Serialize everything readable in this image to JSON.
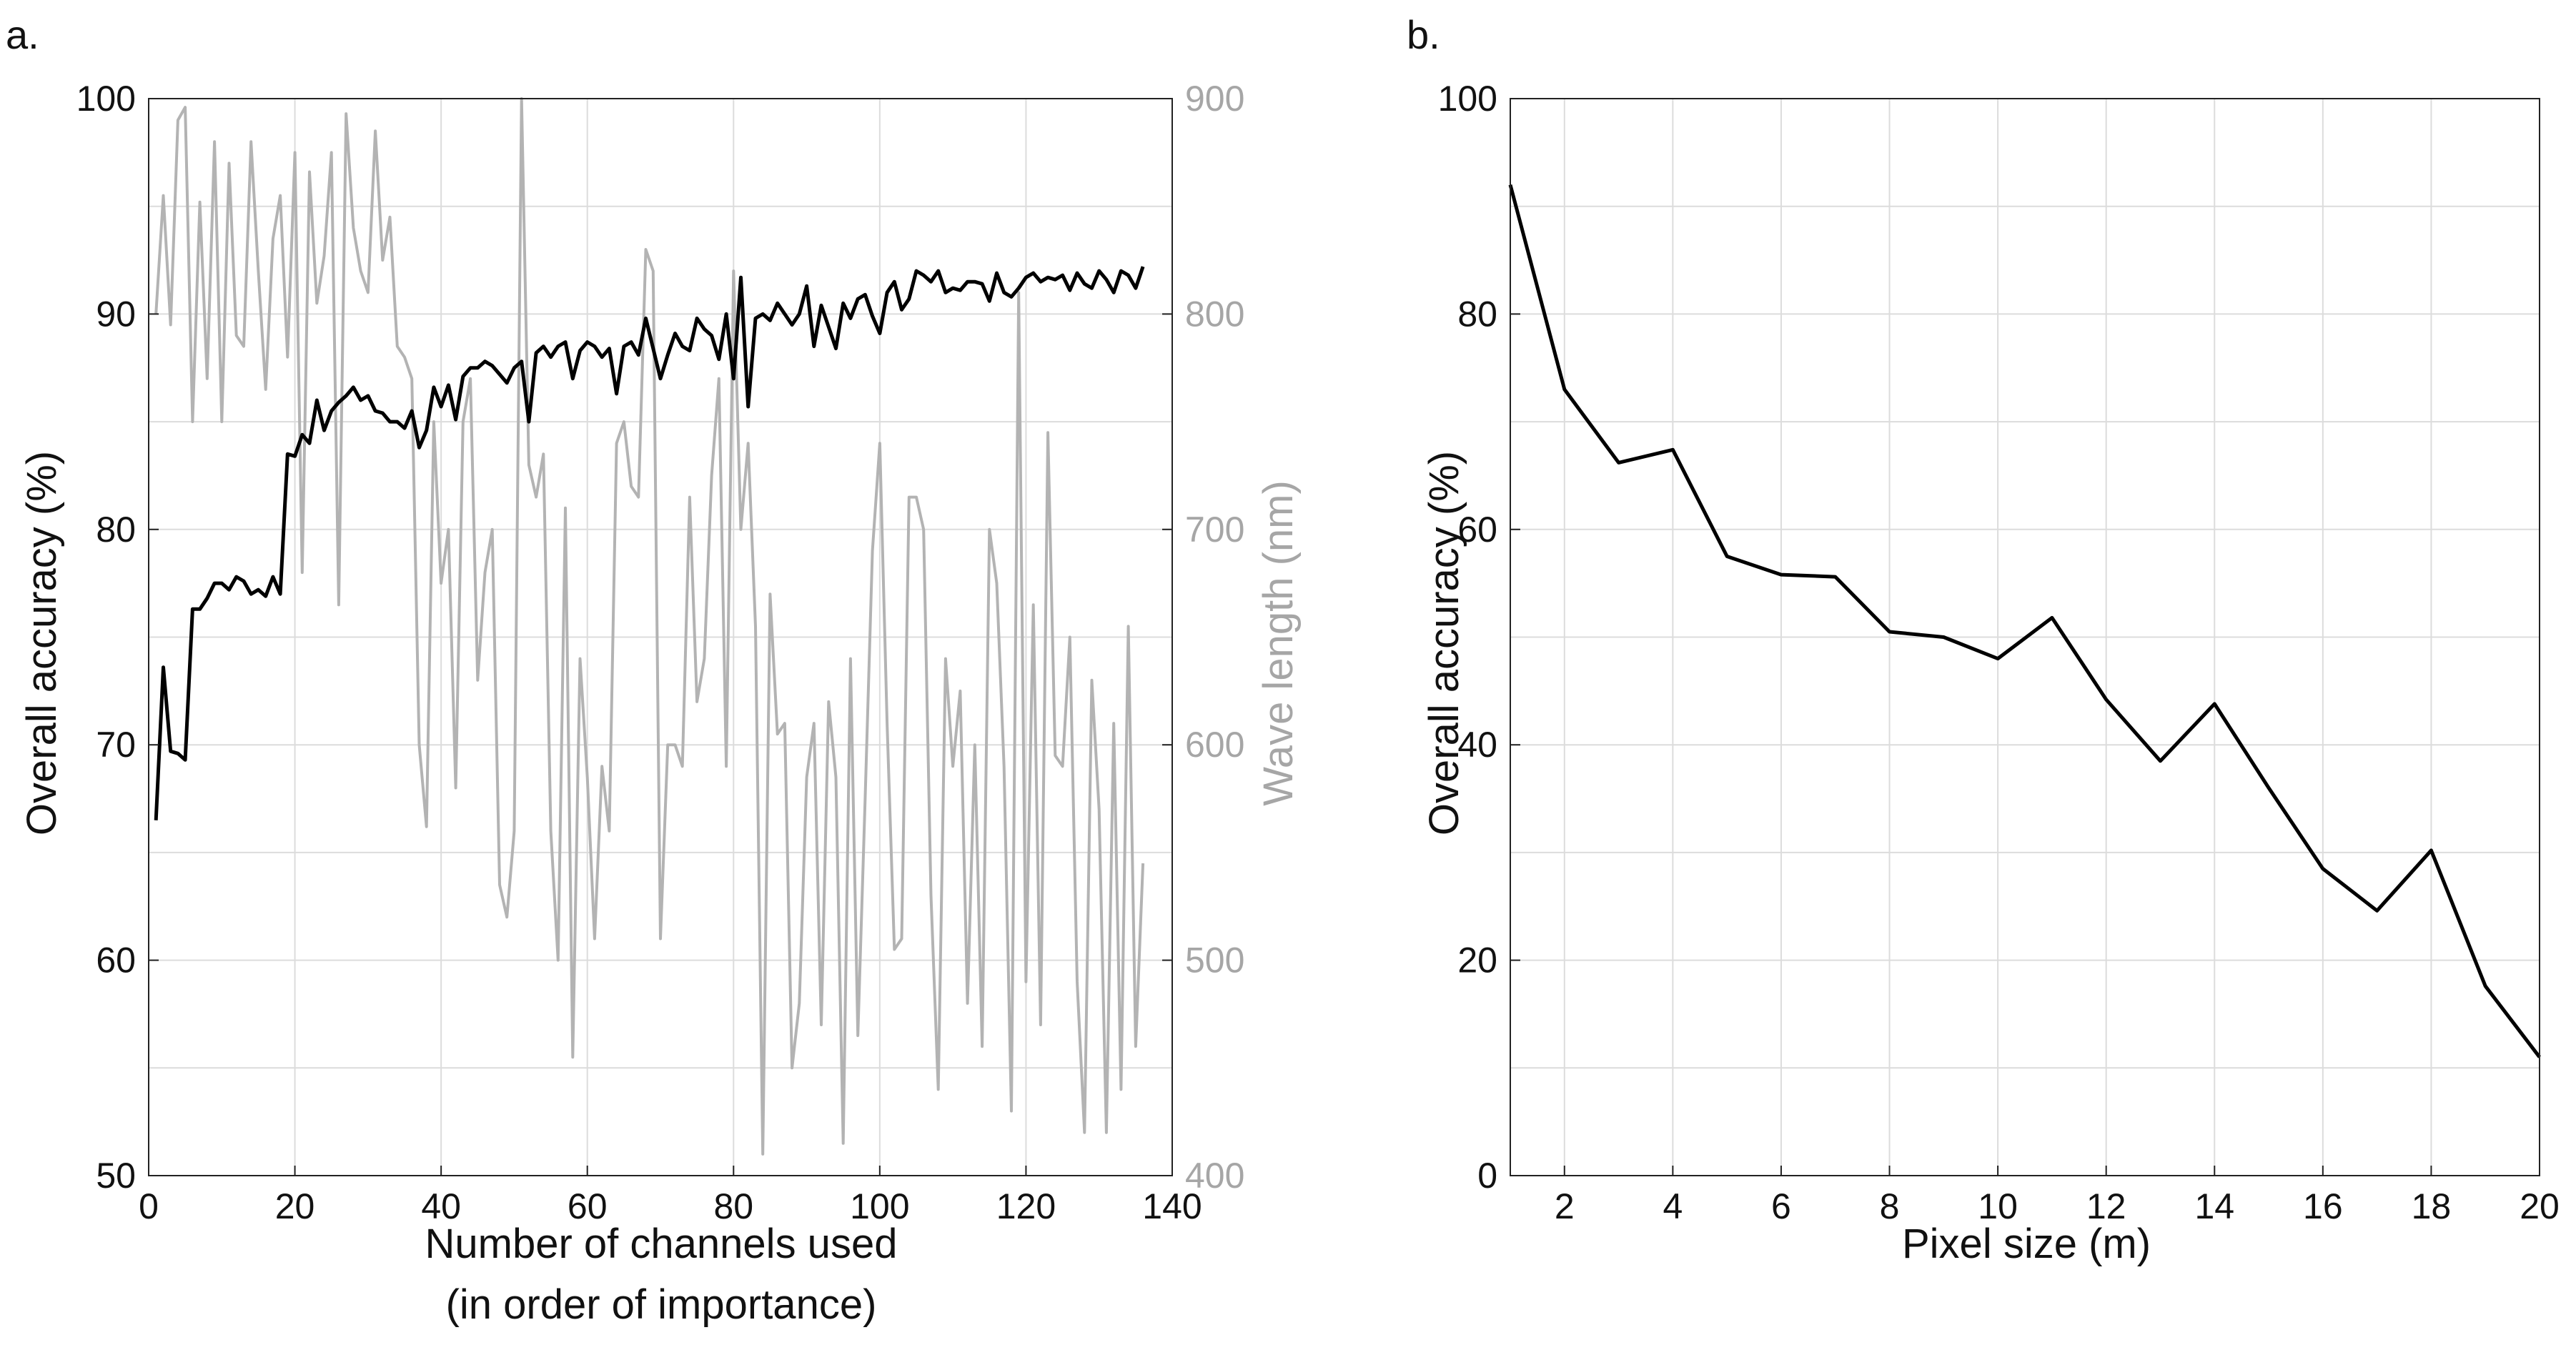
{
  "chart_data": [
    {
      "panel_label": "a.",
      "type": "line",
      "xlabel": "Number of channels used",
      "xlabel_line2": "(in order of importance)",
      "ylabel": "Overall accuracy (%)",
      "y2label": "Wave length (nm)",
      "xlim": [
        0,
        140
      ],
      "ylim": [
        50,
        100
      ],
      "y2lim": [
        400,
        900
      ],
      "x_ticks": [
        "0",
        "20",
        "40",
        "60",
        "80",
        "100",
        "120",
        "140"
      ],
      "y_ticks": [
        "50",
        "60",
        "70",
        "80",
        "90",
        "100"
      ],
      "y2_ticks": [
        "400",
        "500",
        "600",
        "700",
        "800",
        "900"
      ],
      "grid": true,
      "colors": {
        "accuracy": "#000000",
        "wavelength": "#b3b3b3"
      },
      "series": [
        {
          "axis": "left",
          "x": [
            1,
            2,
            3,
            4,
            5,
            6,
            7,
            8,
            9,
            10,
            11,
            12,
            13,
            14,
            15,
            16,
            17,
            18,
            19,
            20,
            21,
            22,
            23,
            24,
            25,
            26,
            27,
            28,
            29,
            30,
            31,
            32,
            33,
            34,
            35,
            36,
            37,
            38,
            39,
            40,
            41,
            42,
            43,
            44,
            45,
            46,
            47,
            48,
            49,
            50,
            51,
            52,
            53,
            54,
            55,
            56,
            57,
            58,
            59,
            60,
            61,
            62,
            63,
            64,
            65,
            66,
            67,
            68,
            69,
            70,
            71,
            72,
            73,
            74,
            75,
            76,
            77,
            78,
            79,
            80,
            81,
            82,
            83,
            84,
            85,
            86,
            87,
            88,
            89,
            90,
            91,
            92,
            93,
            94,
            95,
            96,
            97,
            98,
            99,
            100,
            101,
            102,
            103,
            104,
            105,
            106,
            107,
            108,
            109,
            110,
            111,
            112,
            113,
            114,
            115,
            116,
            117,
            118,
            119,
            120,
            121,
            122,
            123,
            124,
            125,
            126,
            127,
            128,
            129,
            130,
            131,
            132,
            133,
            134,
            135,
            136
          ],
          "values": [
            66.5,
            73.6,
            69.7,
            69.6,
            69.3,
            76.3,
            76.3,
            76.8,
            77.5,
            77.5,
            77.2,
            77.8,
            77.6,
            77.0,
            77.2,
            76.9,
            77.8,
            77.0,
            83.5,
            83.4,
            84.4,
            84.0,
            86.0,
            84.6,
            85.5,
            85.9,
            86.2,
            86.6,
            86.0,
            86.2,
            85.5,
            85.4,
            85.0,
            85.0,
            84.7,
            85.5,
            83.8,
            84.6,
            86.6,
            85.7,
            86.7,
            85.1,
            87.1,
            87.5,
            87.5,
            87.8,
            87.6,
            87.2,
            86.8,
            87.5,
            87.8,
            85.0,
            88.2,
            88.5,
            88.0,
            88.5,
            88.7,
            87.0,
            88.3,
            88.7,
            88.5,
            88.0,
            88.4,
            86.3,
            88.5,
            88.7,
            88.1,
            89.8,
            88.4,
            87.0,
            88.1,
            89.1,
            88.5,
            88.3,
            89.8,
            89.3,
            89.0,
            87.9,
            90.0,
            87.0,
            91.7,
            85.7,
            89.8,
            90.0,
            89.7,
            90.5,
            90.0,
            89.5,
            90.0,
            91.3,
            88.5,
            90.4,
            89.4,
            88.4,
            90.5,
            89.8,
            90.7,
            90.9,
            89.9,
            89.1,
            91.0,
            91.5,
            90.2,
            90.7,
            92.0,
            91.8,
            91.5,
            92.0,
            91.0,
            91.2,
            91.1,
            91.5,
            91.5,
            91.4,
            90.6,
            91.9,
            91.0,
            90.8,
            91.2,
            91.7,
            91.9,
            91.5,
            91.7,
            91.6,
            91.8,
            91.1,
            91.9,
            91.4,
            91.2,
            92.0,
            91.6,
            91.0,
            92.0,
            91.8,
            91.2,
            92.2
          ]
        },
        {
          "axis": "right",
          "x": [
            1,
            2,
            3,
            4,
            5,
            6,
            7,
            8,
            9,
            10,
            11,
            12,
            13,
            14,
            15,
            16,
            17,
            18,
            19,
            20,
            21,
            22,
            23,
            24,
            25,
            26,
            27,
            28,
            29,
            30,
            31,
            32,
            33,
            34,
            35,
            36,
            37,
            38,
            39,
            40,
            41,
            42,
            43,
            44,
            45,
            46,
            47,
            48,
            49,
            50,
            51,
            52,
            53,
            54,
            55,
            56,
            57,
            58,
            59,
            60,
            61,
            62,
            63,
            64,
            65,
            66,
            67,
            68,
            69,
            70,
            71,
            72,
            73,
            74,
            75,
            76,
            77,
            78,
            79,
            80,
            81,
            82,
            83,
            84,
            85,
            86,
            87,
            88,
            89,
            90,
            91,
            92,
            93,
            94,
            95,
            96,
            97,
            98,
            99,
            100,
            101,
            102,
            103,
            104,
            105,
            106,
            107,
            108,
            109,
            110,
            111,
            112,
            113,
            114,
            115,
            116,
            117,
            118,
            119,
            120,
            121,
            122,
            123,
            124,
            125,
            126,
            127,
            128,
            129,
            130,
            131,
            132,
            133,
            134,
            135,
            136
          ],
          "values": [
            800,
            855,
            795,
            890,
            896,
            750,
            852,
            770,
            880,
            750,
            870,
            790,
            785,
            880,
            820,
            765,
            835,
            855,
            780,
            875,
            680,
            866,
            805,
            827,
            875,
            665,
            893,
            840,
            820,
            810,
            885,
            825,
            845,
            785,
            780,
            770,
            600,
            562,
            750,
            675,
            700,
            580,
            750,
            770,
            630,
            680,
            700,
            535,
            520,
            560,
            900,
            730,
            715,
            735,
            560,
            500,
            710,
            455,
            640,
            585,
            510,
            590,
            560,
            740,
            750,
            720,
            715,
            830,
            820,
            510,
            600,
            600,
            590,
            715,
            620,
            640,
            725,
            770,
            590,
            820,
            700,
            740,
            655,
            410,
            670,
            605,
            610,
            450,
            480,
            585,
            610,
            470,
            620,
            585,
            415,
            640,
            465,
            575,
            690,
            740,
            610,
            505,
            510,
            715,
            715,
            700,
            530,
            440,
            640,
            590,
            625,
            480,
            600,
            460,
            700,
            675,
            590,
            430,
            810,
            490,
            665,
            470,
            745,
            595,
            590,
            650,
            490,
            420,
            630,
            570,
            420,
            610,
            440,
            655,
            460,
            545
          ]
        }
      ]
    },
    {
      "panel_label": "b.",
      "type": "line",
      "xlabel": "Pixel size (m)",
      "ylabel": "Overall accuracy (%)",
      "xlim": [
        1,
        20
      ],
      "ylim": [
        0,
        100
      ],
      "x_ticks": [
        "2",
        "4",
        "6",
        "8",
        "10",
        "12",
        "14",
        "16",
        "18",
        "20"
      ],
      "y_ticks": [
        "0",
        "20",
        "40",
        "60",
        "80",
        "100"
      ],
      "grid": true,
      "colors": {
        "line": "#000000"
      },
      "series": [
        {
          "x": [
            1,
            2,
            3,
            4,
            5,
            6,
            7,
            8,
            9,
            10,
            11,
            12,
            13,
            14,
            15,
            16,
            17,
            18,
            19,
            20
          ],
          "values": [
            92.0,
            73.0,
            66.2,
            67.4,
            57.5,
            55.8,
            55.6,
            50.5,
            50.0,
            48.0,
            51.8,
            44.2,
            38.5,
            43.8,
            36.0,
            28.5,
            24.6,
            30.2,
            17.6,
            11.0
          ]
        }
      ]
    }
  ]
}
